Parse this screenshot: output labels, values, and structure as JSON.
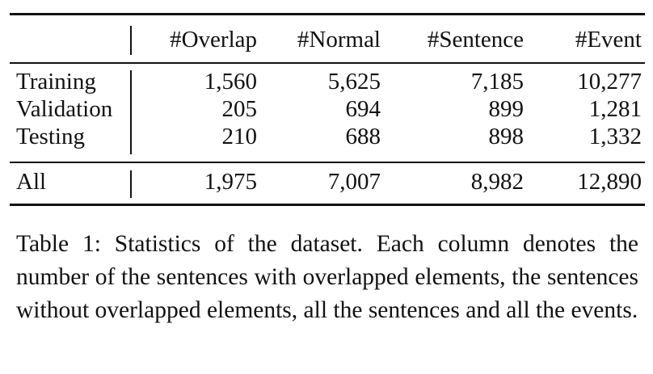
{
  "table": {
    "headers": [
      "",
      "#Overlap",
      "#Normal",
      "#Sentence",
      "#Event"
    ],
    "rows": [
      {
        "label": "Training",
        "values": [
          "1,560",
          "5,625",
          "7,185",
          "10,277"
        ]
      },
      {
        "label": "Validation",
        "values": [
          "205",
          "694",
          "899",
          "1,281"
        ]
      },
      {
        "label": "Testing",
        "values": [
          "210",
          "688",
          "898",
          "1,332"
        ]
      }
    ],
    "total": {
      "label": "All",
      "values": [
        "1,975",
        "7,007",
        "8,982",
        "12,890"
      ]
    }
  },
  "caption": {
    "text": "Table 1: Statistics of the dataset. Each column denotes the number of the sentences with overlapped elements, the sentences without overlapped elements, all the sen­tences and all the events."
  }
}
